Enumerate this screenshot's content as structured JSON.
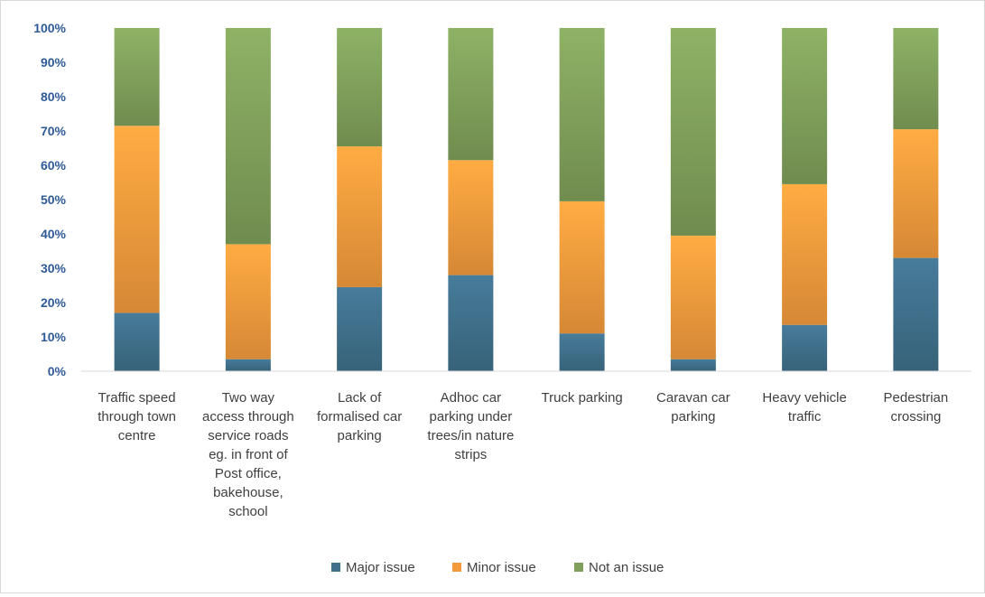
{
  "chart_data": {
    "type": "bar",
    "stacked": true,
    "percent_stacked": true,
    "title": "",
    "xlabel": "",
    "ylabel": "",
    "ylim": [
      0,
      100
    ],
    "y_ticks": [
      "0%",
      "10%",
      "20%",
      "30%",
      "40%",
      "50%",
      "60%",
      "70%",
      "80%",
      "90%",
      "100%"
    ],
    "grid": false,
    "legend_position": "bottom",
    "categories": [
      "Traffic speed through town centre",
      "Two way access through service roads eg. in front of Post office, bakehouse, school",
      "Lack of formalised car parking",
      "Adhoc car parking under trees/in nature strips",
      "Truck parking",
      "Caravan car parking",
      "Heavy vehicle traffic",
      "Pedestrian crossing"
    ],
    "category_lines": [
      [
        "Traffic speed",
        "through town",
        "centre"
      ],
      [
        "Two way",
        "access through",
        "service roads",
        "eg. in front of",
        "Post office,",
        "bakehouse,",
        "school"
      ],
      [
        "Lack of",
        "formalised car",
        "parking"
      ],
      [
        "Adhoc car",
        "parking under",
        "trees/in nature",
        "strips"
      ],
      [
        "Truck parking"
      ],
      [
        "Caravan car",
        "parking"
      ],
      [
        "Heavy vehicle",
        "traffic"
      ],
      [
        "Pedestrian",
        "crossing"
      ]
    ],
    "series": [
      {
        "name": "Major issue",
        "color": "#3f6f8a",
        "values": [
          17,
          3.5,
          24.5,
          28,
          11,
          3.5,
          13.5,
          33
        ]
      },
      {
        "name": "Minor issue",
        "color": "#f39a3c",
        "values": [
          54.5,
          33.5,
          41,
          33.5,
          38.5,
          36,
          41,
          37.5
        ]
      },
      {
        "name": "Not an issue",
        "color": "#7f9f5a",
        "values": [
          28.5,
          63,
          34.5,
          38.5,
          50.5,
          60.5,
          45.5,
          29.5
        ]
      }
    ]
  }
}
